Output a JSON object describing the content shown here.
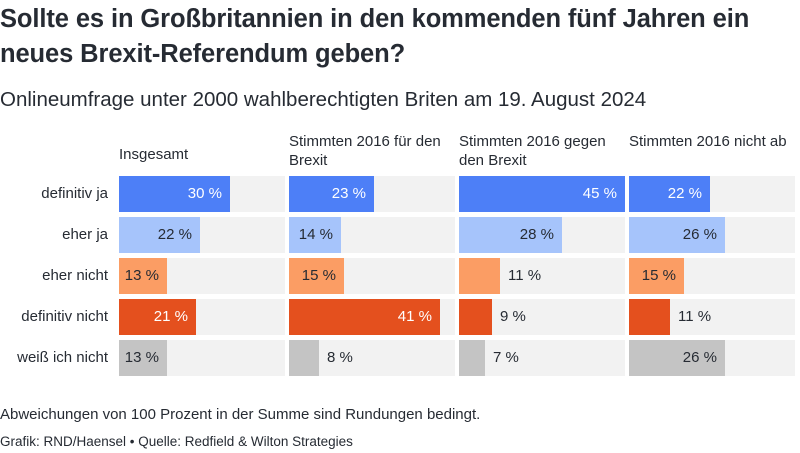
{
  "title": "Sollte es in Großbritannien in den kommenden fünf Jahren ein neues Brexit-Referendum geben?",
  "subtitle": "Onlineumfrage unter 2000 wahlberechtigten Briten am 19. August 2024",
  "note": "Abweichungen von 100 Prozent in der Summe sind Rundungen bedingt.",
  "credit": "Grafik: RND/Haensel • Quelle: Redfield & Wilton Strategies",
  "chart_data": {
    "type": "bar",
    "orientation": "horizontal",
    "layout": "small-multiples",
    "unit": "%",
    "xlim": [
      0,
      45
    ],
    "categories": [
      "definitiv ja",
      "eher ja",
      "eher nicht",
      "definitiv nicht",
      "weiß ich nicht"
    ],
    "colors": [
      "#4d7ff7",
      "#a6c4fb",
      "#fb9d64",
      "#e4501e",
      "#c4c4c4"
    ],
    "panels": [
      {
        "name": "Insgesamt",
        "values": [
          30,
          22,
          13,
          21,
          13
        ]
      },
      {
        "name": "Stimmten 2016 für den Brexit",
        "values": [
          23,
          14,
          15,
          41,
          8
        ]
      },
      {
        "name": "Stimmten 2016 gegen den Brexit",
        "values": [
          45,
          28,
          11,
          9,
          7
        ]
      },
      {
        "name": "Stimmten 2016 nicht ab",
        "values": [
          22,
          26,
          15,
          11,
          26
        ]
      }
    ]
  }
}
